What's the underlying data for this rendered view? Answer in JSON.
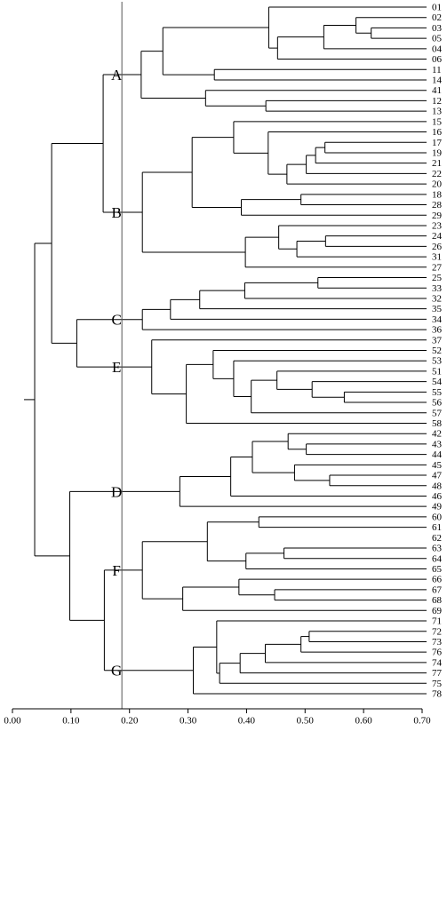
{
  "chart_data": {
    "type": "dendrogram",
    "title": "",
    "xlabel": "",
    "ylabel": "",
    "xlim": [
      0.0,
      0.7
    ],
    "ticks": [
      "0.00",
      "0.10",
      "0.20",
      "0.30",
      "0.40",
      "0.50",
      "0.60",
      "0.70"
    ],
    "tick_values": [
      0.0,
      0.1,
      0.2,
      0.3,
      0.4,
      0.5,
      0.6,
      0.7
    ],
    "threshold": 0.187,
    "leaves": [
      "01",
      "02",
      "03",
      "05",
      "04",
      "06",
      "11",
      "14",
      "41",
      "12",
      "13",
      "15",
      "16",
      "17",
      "19",
      "21",
      "22",
      "20",
      "18",
      "28",
      "29",
      "23",
      "24",
      "26",
      "31",
      "27",
      "25",
      "33",
      "32",
      "35",
      "34",
      "36",
      "37",
      "52",
      "53",
      "51",
      "54",
      "55",
      "56",
      "57",
      "58",
      "42",
      "43",
      "44",
      "45",
      "47",
      "48",
      "46",
      "49",
      "60",
      "61",
      "62",
      "63",
      "64",
      "65",
      "66",
      "67",
      "68",
      "69",
      "71",
      "72",
      "73",
      "76",
      "74",
      "77",
      "75",
      "78"
    ],
    "merges": [
      {
        "id": "a1",
        "height": 0.613,
        "children": [
          "03",
          "05"
        ]
      },
      {
        "id": "a2",
        "height": 0.587,
        "children": [
          "02",
          "a1"
        ]
      },
      {
        "id": "a3",
        "height": 0.532,
        "children": [
          "a2",
          "04"
        ]
      },
      {
        "id": "a4",
        "height": 0.453,
        "children": [
          "a3",
          "06"
        ]
      },
      {
        "id": "a5",
        "height": 0.438,
        "children": [
          "01",
          "a4"
        ]
      },
      {
        "id": "a6",
        "height": 0.345,
        "children": [
          "11",
          "14"
        ]
      },
      {
        "id": "a7",
        "height": 0.257,
        "children": [
          "a5",
          "a6"
        ]
      },
      {
        "id": "a8",
        "height": 0.433,
        "children": [
          "12",
          "13"
        ]
      },
      {
        "id": "a9",
        "height": 0.33,
        "children": [
          "41",
          "a8"
        ]
      },
      {
        "id": "A",
        "height": 0.22,
        "children": [
          "a7",
          "a9"
        ]
      },
      {
        "id": "b1",
        "height": 0.534,
        "children": [
          "17",
          "19"
        ]
      },
      {
        "id": "b2",
        "height": 0.518,
        "children": [
          "b1",
          "21"
        ]
      },
      {
        "id": "b3",
        "height": 0.502,
        "children": [
          "b2",
          "22"
        ]
      },
      {
        "id": "b4",
        "height": 0.469,
        "children": [
          "b3",
          "20"
        ]
      },
      {
        "id": "b5",
        "height": 0.437,
        "children": [
          "16",
          "b4"
        ]
      },
      {
        "id": "b6",
        "height": 0.378,
        "children": [
          "15",
          "b5"
        ]
      },
      {
        "id": "b7",
        "height": 0.493,
        "children": [
          "18",
          "28"
        ]
      },
      {
        "id": "b8",
        "height": 0.391,
        "children": [
          "b7",
          "29"
        ]
      },
      {
        "id": "b9",
        "height": 0.307,
        "children": [
          "b6",
          "b8"
        ]
      },
      {
        "id": "b10",
        "height": 0.535,
        "children": [
          "24",
          "26"
        ]
      },
      {
        "id": "b11",
        "height": 0.486,
        "children": [
          "b10",
          "31"
        ]
      },
      {
        "id": "b12",
        "height": 0.455,
        "children": [
          "23",
          "b11"
        ]
      },
      {
        "id": "b13",
        "height": 0.398,
        "children": [
          "b12",
          "27"
        ]
      },
      {
        "id": "B",
        "height": 0.222,
        "children": [
          "b9",
          "b13"
        ]
      },
      {
        "id": "AB",
        "height": 0.155,
        "children": [
          "A",
          "B"
        ]
      },
      {
        "id": "c1",
        "height": 0.522,
        "children": [
          "25",
          "33"
        ]
      },
      {
        "id": "c2",
        "height": 0.397,
        "children": [
          "c1",
          "32"
        ]
      },
      {
        "id": "c3",
        "height": 0.32,
        "children": [
          "c2",
          "35"
        ]
      },
      {
        "id": "c4",
        "height": 0.27,
        "children": [
          "c3",
          "34"
        ]
      },
      {
        "id": "C",
        "height": 0.222,
        "children": [
          "c4",
          "36"
        ]
      },
      {
        "id": "e1",
        "height": 0.567,
        "children": [
          "55",
          "56"
        ]
      },
      {
        "id": "e2",
        "height": 0.512,
        "children": [
          "54",
          "e1"
        ]
      },
      {
        "id": "e3",
        "height": 0.452,
        "children": [
          "51",
          "e2"
        ]
      },
      {
        "id": "e4",
        "height": 0.408,
        "children": [
          "e3",
          "57"
        ]
      },
      {
        "id": "e5",
        "height": 0.378,
        "children": [
          "53",
          "e4"
        ]
      },
      {
        "id": "e6",
        "height": 0.343,
        "children": [
          "52",
          "e5"
        ]
      },
      {
        "id": "e7",
        "height": 0.297,
        "children": [
          "e6",
          "58"
        ]
      },
      {
        "id": "E",
        "height": 0.238,
        "children": [
          "37",
          "e7"
        ]
      },
      {
        "id": "CE",
        "height": 0.11,
        "children": [
          "C",
          "E"
        ]
      },
      {
        "id": "ABCE",
        "height": 0.067,
        "children": [
          "AB",
          "CE"
        ]
      },
      {
        "id": "d1",
        "height": 0.502,
        "children": [
          "43",
          "44"
        ]
      },
      {
        "id": "d2",
        "height": 0.471,
        "children": [
          "42",
          "d1"
        ]
      },
      {
        "id": "d3",
        "height": 0.542,
        "children": [
          "47",
          "48"
        ]
      },
      {
        "id": "d4",
        "height": 0.482,
        "children": [
          "45",
          "d3"
        ]
      },
      {
        "id": "d5",
        "height": 0.41,
        "children": [
          "d2",
          "d4"
        ]
      },
      {
        "id": "d6",
        "height": 0.373,
        "children": [
          "d5",
          "46"
        ]
      },
      {
        "id": "D",
        "height": 0.286,
        "children": [
          "d6",
          "49"
        ]
      },
      {
        "id": "f1",
        "height": 0.421,
        "children": [
          "60",
          "61"
        ]
      },
      {
        "id": "f2",
        "height": 0.464,
        "children": [
          "63",
          "64"
        ]
      },
      {
        "id": "f3",
        "height": 0.399,
        "children": [
          "f2",
          "65"
        ]
      },
      {
        "id": "f4",
        "height": 0.333,
        "children": [
          "f1",
          "f3"
        ]
      },
      {
        "id": "f5",
        "height": 0.448,
        "children": [
          "67",
          "68"
        ]
      },
      {
        "id": "f6",
        "height": 0.387,
        "children": [
          "66",
          "f5"
        ]
      },
      {
        "id": "f7",
        "height": 0.291,
        "children": [
          "f6",
          "69"
        ]
      },
      {
        "id": "F",
        "height": 0.222,
        "children": [
          "f4",
          "f7"
        ]
      },
      {
        "id": "g1",
        "height": 0.507,
        "children": [
          "72",
          "73"
        ]
      },
      {
        "id": "g2",
        "height": 0.493,
        "children": [
          "g1",
          "76"
        ]
      },
      {
        "id": "g3",
        "height": 0.432,
        "children": [
          "g2",
          "74"
        ]
      },
      {
        "id": "g4",
        "height": 0.389,
        "children": [
          "g3",
          "77"
        ]
      },
      {
        "id": "g5",
        "height": 0.354,
        "children": [
          "g4",
          "75"
        ]
      },
      {
        "id": "g6",
        "height": 0.349,
        "children": [
          "71",
          "g5"
        ]
      },
      {
        "id": "G",
        "height": 0.309,
        "children": [
          "g6",
          "78"
        ]
      },
      {
        "id": "FG",
        "height": 0.157,
        "children": [
          "F",
          "G"
        ]
      },
      {
        "id": "DFG",
        "height": 0.098,
        "children": [
          "D",
          "FG"
        ]
      },
      {
        "id": "root",
        "height": 0.038,
        "children": [
          "ABCE",
          "DFG"
        ]
      }
    ],
    "group_labels": [
      {
        "text": "A",
        "node": "A"
      },
      {
        "text": "B",
        "node": "B"
      },
      {
        "text": "C",
        "node": "C"
      },
      {
        "text": "E",
        "node": "E"
      },
      {
        "text": "D",
        "node": "D"
      },
      {
        "text": "F",
        "node": "F"
      },
      {
        "text": "G",
        "node": "G"
      }
    ]
  }
}
